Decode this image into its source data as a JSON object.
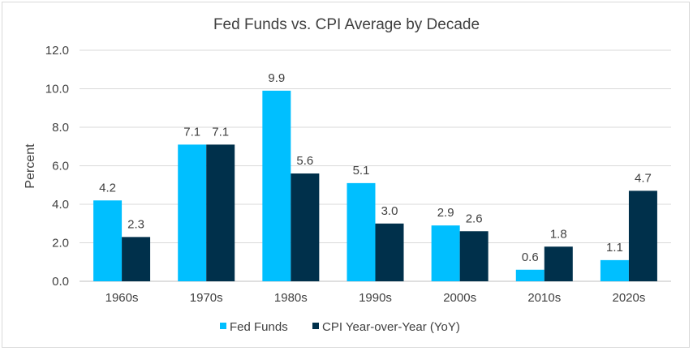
{
  "chart_data": {
    "type": "bar",
    "title": "Fed Funds vs. CPI Average by Decade",
    "xlabel": "",
    "ylabel": "Percent",
    "ylim": [
      0,
      12
    ],
    "yticks": [
      "0.0",
      "2.0",
      "4.0",
      "6.0",
      "8.0",
      "10.0",
      "12.0"
    ],
    "categories": [
      "1960s",
      "1970s",
      "1980s",
      "1990s",
      "2000s",
      "2010s",
      "2020s"
    ],
    "series": [
      {
        "name": "Fed Funds",
        "color": "#00bfff",
        "values": [
          4.2,
          7.1,
          9.9,
          5.1,
          2.9,
          0.6,
          1.1
        ],
        "labels": [
          "4.2",
          "7.1",
          "9.9",
          "5.1",
          "2.9",
          "0.6",
          "1.1"
        ]
      },
      {
        "name": "CPI Year-over-Year (YoY)",
        "color": "#00304b",
        "values": [
          2.3,
          7.1,
          5.6,
          3.0,
          2.6,
          1.8,
          4.7
        ],
        "labels": [
          "2.3",
          "7.1",
          "5.6",
          "3.0",
          "2.6",
          "1.8",
          "4.7"
        ]
      }
    ],
    "legend": "bottom",
    "grid": true
  }
}
